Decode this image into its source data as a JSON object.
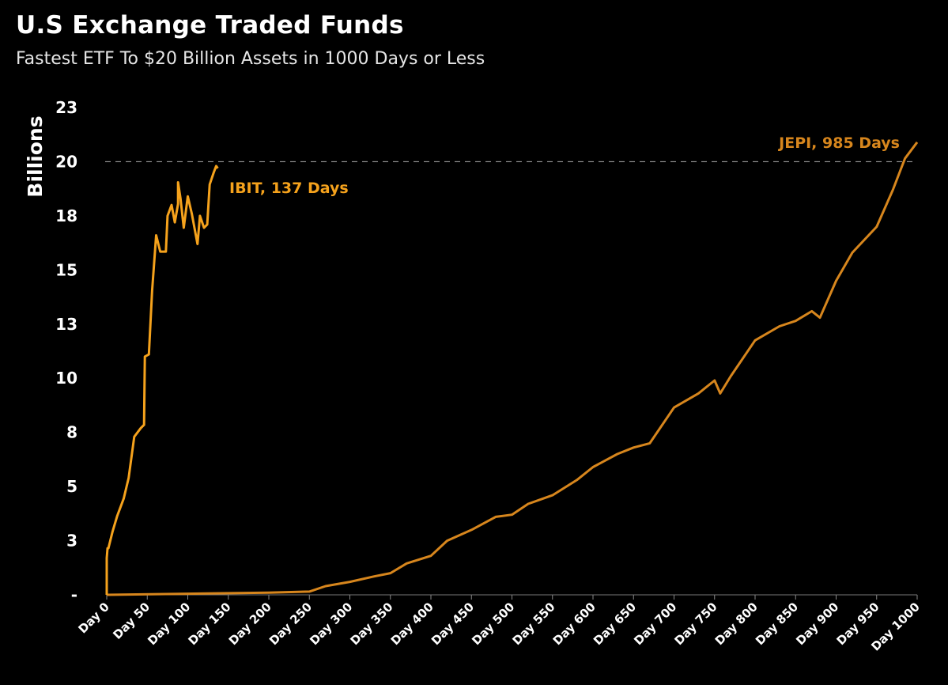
{
  "chart_data": {
    "type": "line",
    "title": "U.S Exchange Traded Funds",
    "subtitle": "Fastest ETF To $20 Billion Assets in 1000 Days or Less",
    "xlabel": "",
    "ylabel": "Billions",
    "xlim": [
      0,
      1000
    ],
    "ylim": [
      0,
      22.5
    ],
    "yticks": [
      0,
      2.5,
      5,
      7.5,
      10,
      12.5,
      15,
      17.5,
      20,
      22.5
    ],
    "ytick_labels": [
      "-",
      "3",
      "5",
      "8",
      "10",
      "13",
      "15",
      "18",
      "20",
      "23"
    ],
    "xticks": [
      0,
      50,
      100,
      150,
      200,
      250,
      300,
      350,
      400,
      450,
      500,
      550,
      600,
      650,
      700,
      750,
      800,
      850,
      900,
      950,
      1000
    ],
    "xtick_labels": [
      "Day 0",
      "Day 50",
      "Day 100",
      "Day 150",
      "Day 200",
      "Day 250",
      "Day 300",
      "Day 350",
      "Day 400",
      "Day 450",
      "Day 500",
      "Day 550",
      "Day 600",
      "Day 650",
      "Day 700",
      "Day 750",
      "Day 800",
      "Day 850",
      "Day 900",
      "Day 950",
      "Day 1000"
    ],
    "reference_line": {
      "y": 20,
      "style": "dashed",
      "color": "#9a9a9a"
    },
    "grid": false,
    "series": [
      {
        "name": "IBIT",
        "color": "#f5a21c",
        "annotation": "IBIT, 137 Days",
        "x": [
          0,
          0,
          1,
          2,
          7,
          13,
          21,
          27,
          34,
          42,
          46,
          47,
          52,
          56,
          61,
          66,
          73,
          75,
          80,
          84,
          88,
          88,
          91,
          95,
          100,
          105,
          112,
          115,
          120,
          124,
          127,
          132,
          135,
          137
        ],
        "y": [
          0,
          1.7,
          2.15,
          2.15,
          2.9,
          3.65,
          4.45,
          5.4,
          7.3,
          7.7,
          7.85,
          11.0,
          11.1,
          14.05,
          16.6,
          15.85,
          15.85,
          17.5,
          18.0,
          17.2,
          18.05,
          19.05,
          18.3,
          16.95,
          18.4,
          17.6,
          16.2,
          17.5,
          16.95,
          17.1,
          18.95,
          19.5,
          19.8,
          19.7
        ]
      },
      {
        "name": "JEPI",
        "color": "#d7861d",
        "annotation": "JEPI, 985 Days",
        "x": [
          0,
          100,
          200,
          250,
          270,
          300,
          330,
          350,
          370,
          400,
          420,
          450,
          480,
          500,
          520,
          550,
          580,
          600,
          630,
          650,
          670,
          700,
          730,
          750,
          757,
          770,
          800,
          830,
          850,
          870,
          880,
          900,
          920,
          950,
          970,
          985,
          1000
        ],
        "y": [
          0,
          0.05,
          0.1,
          0.15,
          0.4,
          0.6,
          0.85,
          1.0,
          1.45,
          1.8,
          2.5,
          3.0,
          3.6,
          3.7,
          4.2,
          4.6,
          5.3,
          5.9,
          6.5,
          6.8,
          7.0,
          8.65,
          9.3,
          9.9,
          9.3,
          10.1,
          11.75,
          12.4,
          12.65,
          13.1,
          12.8,
          14.5,
          15.8,
          17.0,
          18.7,
          20.15,
          20.9
        ]
      }
    ]
  }
}
